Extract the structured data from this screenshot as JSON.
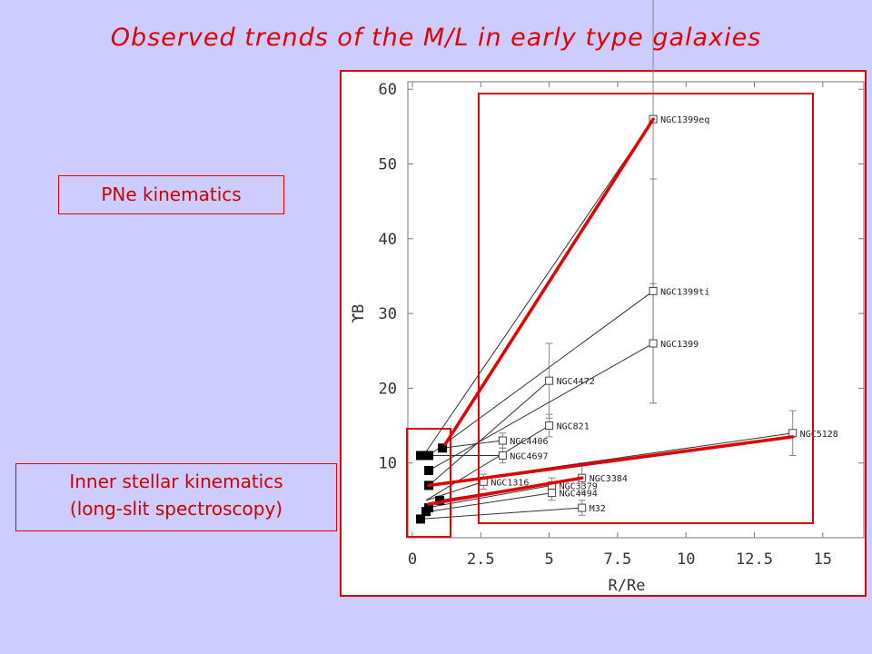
{
  "slide": {
    "title": "Observed trends of the M/L in early type galaxies",
    "pne_label": "PNe kinematics",
    "inner_label_line1": "Inner stellar kinematics",
    "inner_label_line2": "(long-slit spectroscopy)"
  },
  "colors": {
    "background": "#ccccff",
    "accent": "#e00000",
    "data": "#333333"
  },
  "chart_data": {
    "type": "line",
    "title": "",
    "xlabel": "R/Re",
    "ylabel": "ϒB",
    "xlim": [
      0,
      16.5
    ],
    "ylim": [
      0,
      61
    ],
    "xticks": [
      {
        "v": 0,
        "label": "0"
      },
      {
        "v": 2.5,
        "label": "2.5"
      },
      {
        "v": 5,
        "label": "5"
      },
      {
        "v": 7.5,
        "label": "7.5"
      },
      {
        "v": 10,
        "label": "10"
      },
      {
        "v": 12.5,
        "label": "12.5"
      },
      {
        "v": 15,
        "label": "15"
      }
    ],
    "yticks": [
      {
        "v": 10,
        "label": "10"
      },
      {
        "v": 20,
        "label": "20"
      },
      {
        "v": 30,
        "label": "30"
      },
      {
        "v": 40,
        "label": "40"
      },
      {
        "v": 50,
        "label": "50"
      },
      {
        "v": 60,
        "label": "60"
      }
    ],
    "grid": false,
    "series": [
      {
        "name": "NGC1399eq",
        "x": [
          0.5,
          8.8
        ],
        "y": [
          11.5,
          56
        ],
        "yerr": 30
      },
      {
        "name": "NGC1399ti",
        "x": [
          0.6,
          8.8
        ],
        "y": [
          11,
          33
        ],
        "yerr": 15
      },
      {
        "name": "NGC1399",
        "x": [
          0.6,
          8.8
        ],
        "y": [
          9,
          26
        ],
        "yerr": 8
      },
      {
        "name": "NGC4472",
        "x": [
          0.6,
          5.0
        ],
        "y": [
          7,
          21
        ],
        "yerr": 5
      },
      {
        "name": "NGC821",
        "x": [
          0.5,
          5.0
        ],
        "y": [
          5,
          15
        ],
        "yerr": 1.5
      },
      {
        "name": "NGC4406",
        "x": [
          1.1,
          3.3
        ],
        "y": [
          12,
          13
        ],
        "yerr": 1
      },
      {
        "name": "NGC4697",
        "x": [
          0.3,
          3.3
        ],
        "y": [
          11,
          11
        ],
        "yerr": 1
      },
      {
        "name": "NGC5128",
        "x": [
          0.5,
          13.9
        ],
        "y": [
          7,
          14
        ],
        "yerr": 3
      },
      {
        "name": "NGC1316",
        "x": [
          0.5,
          2.6
        ],
        "y": [
          5,
          7.5
        ],
        "yerr": 1
      },
      {
        "name": "NGC3384",
        "x": [
          1.0,
          6.2
        ],
        "y": [
          5,
          8
        ],
        "yerr": 2
      },
      {
        "name": "NGC3379",
        "x": [
          0.5,
          5.1
        ],
        "y": [
          4,
          7
        ],
        "yerr": 1
      },
      {
        "name": "NGC4494",
        "x": [
          0.6,
          5.1
        ],
        "y": [
          3.5,
          6
        ],
        "yerr": 1
      },
      {
        "name": "M32",
        "x": [
          0.3,
          6.2
        ],
        "y": [
          2.5,
          4
        ],
        "yerr": 1
      }
    ],
    "inner_points": {
      "x": [
        0.3,
        0.6,
        1.1,
        0.6,
        0.6,
        1.0,
        0.6,
        0.5,
        0.3
      ],
      "y": [
        11,
        11,
        12,
        9,
        7,
        5,
        4,
        3.5,
        2.5
      ]
    },
    "highlight_trends": [
      {
        "x": [
          1.2,
          8.8
        ],
        "y": [
          12.5,
          56
        ]
      },
      {
        "x": [
          0.6,
          13.9
        ],
        "y": [
          7,
          13.5
        ]
      },
      {
        "x": [
          0.6,
          6.2
        ],
        "y": [
          4.5,
          8
        ]
      }
    ]
  }
}
